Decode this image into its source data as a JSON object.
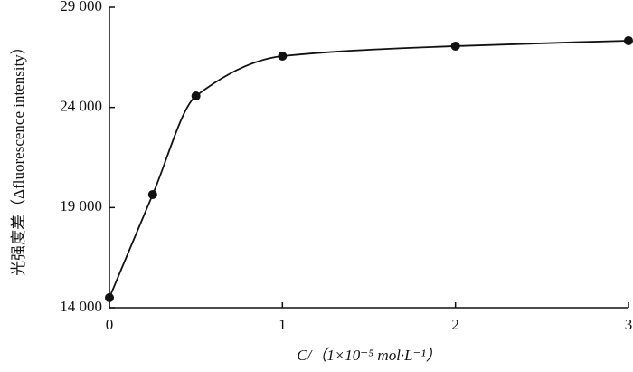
{
  "chart_data": {
    "type": "line",
    "x_label": "C/（1×10⁻⁵ mol·L⁻¹）",
    "y_label": "光强度差（Δfluorescence intensity）",
    "x": [
      0,
      0.25,
      0.5,
      1,
      2,
      3
    ],
    "series": [
      {
        "color": "#111111",
        "values": [
          14500,
          19650,
          24570,
          26560,
          27060,
          27330
        ]
      }
    ],
    "xlim": [
      0,
      3
    ],
    "xticks": [
      0,
      1,
      2,
      3
    ],
    "ylim": [
      14000,
      29000
    ],
    "yticks": [
      {
        "value": 14000,
        "label": "14 000"
      },
      {
        "value": 19000,
        "label": "19 000"
      },
      {
        "value": 24000,
        "label": "24 000"
      },
      {
        "value": 29000,
        "label": "29 000"
      }
    ],
    "smooth": true,
    "markers": true
  }
}
